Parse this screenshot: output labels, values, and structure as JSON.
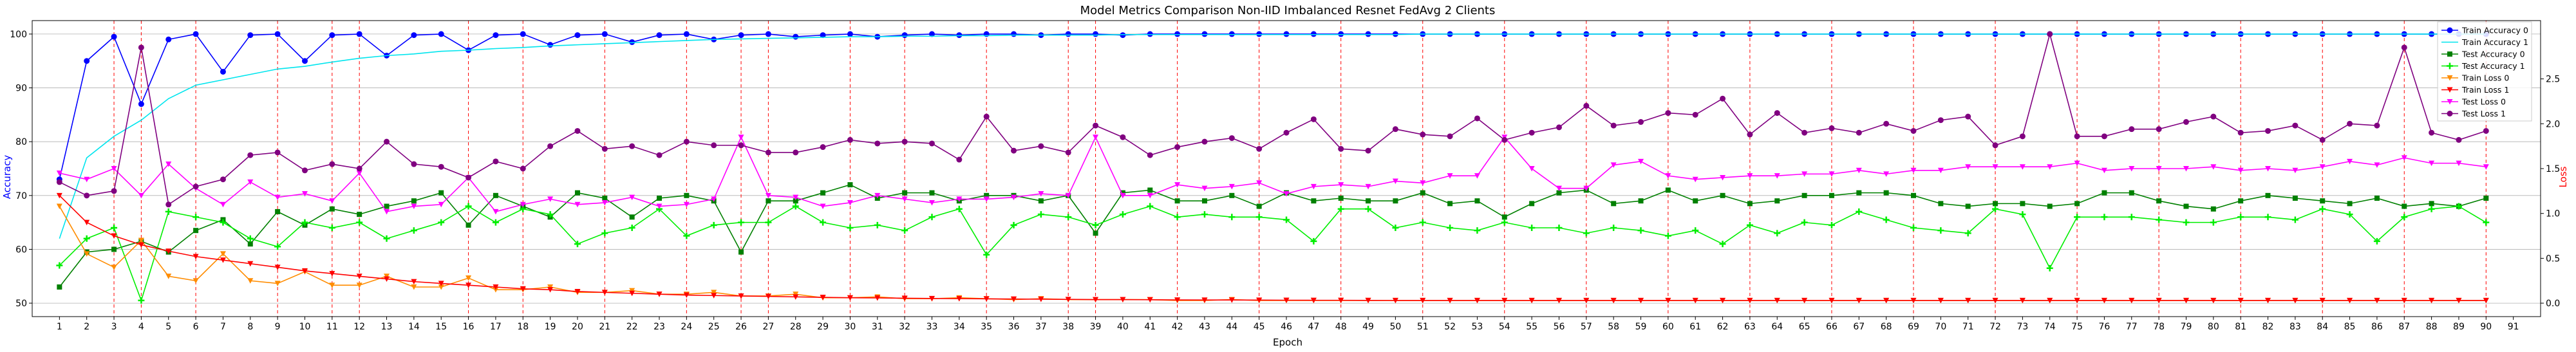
{
  "chart_data": {
    "type": "line",
    "title": "Model Metrics Comparison Non-IID Imbalanced Resnet FedAvg 2 Clients",
    "xlabel": "Epoch",
    "ylabel_left": "Accuracy",
    "ylabel_right": "Loss",
    "x": [
      1,
      2,
      3,
      4,
      5,
      6,
      7,
      8,
      9,
      10,
      11,
      12,
      13,
      14,
      15,
      16,
      17,
      18,
      19,
      20,
      21,
      22,
      23,
      24,
      25,
      26,
      27,
      28,
      29,
      30,
      31,
      32,
      33,
      34,
      35,
      36,
      37,
      38,
      39,
      40,
      41,
      42,
      43,
      44,
      45,
      46,
      47,
      48,
      49,
      50,
      51,
      52,
      53,
      54,
      55,
      56,
      57,
      58,
      59,
      60,
      61,
      62,
      63,
      64,
      65,
      66,
      67,
      68,
      69,
      70,
      71,
      72,
      73,
      74,
      75,
      76,
      77,
      78,
      79,
      80,
      81,
      82,
      83,
      84,
      85,
      86,
      87,
      88,
      89,
      90
    ],
    "x_ticks": [
      "1",
      "2",
      "3",
      "4",
      "5",
      "6",
      "7",
      "8",
      "9",
      "10",
      "11",
      "12",
      "13",
      "14",
      "15",
      "16",
      "17",
      "18",
      "19",
      "20",
      "21",
      "22",
      "23",
      "24",
      "25",
      "26",
      "27",
      "28",
      "29",
      "30",
      "31",
      "32",
      "33",
      "34",
      "35",
      "36",
      "37",
      "38",
      "39",
      "40",
      "41",
      "42",
      "43",
      "44",
      "45",
      "46",
      "47",
      "48",
      "49",
      "50",
      "51",
      "52",
      "53",
      "54",
      "55",
      "56",
      "57",
      "58",
      "59",
      "60",
      "61",
      "62",
      "63",
      "64",
      "65",
      "66",
      "67",
      "68",
      "69",
      "70",
      "71",
      "72",
      "73",
      "74",
      "75",
      "76",
      "77",
      "78",
      "79",
      "80",
      "81",
      "82",
      "83",
      "84",
      "85",
      "86",
      "87",
      "88",
      "89",
      "90",
      "91"
    ],
    "xlim": [
      0,
      92
    ],
    "ylim_left": [
      47.5,
      102.5
    ],
    "ylim_right": [
      -0.15,
      3.15
    ],
    "left_ticks": [
      "50",
      "60",
      "70",
      "80",
      "90",
      "100"
    ],
    "right_ticks": [
      "0.0",
      "0.5",
      "1.0",
      "1.5",
      "2.0",
      "2.5"
    ],
    "vlines": [
      3,
      4,
      6,
      9,
      11,
      12,
      16,
      18,
      21,
      24,
      26,
      27,
      30,
      32,
      35,
      38,
      39,
      42,
      45,
      48,
      51,
      54,
      57,
      60,
      63,
      66,
      69,
      72,
      75,
      78,
      81,
      84,
      87,
      90
    ],
    "grid": true,
    "legend_position": "top-right",
    "series": [
      {
        "name": "Train Accuracy 0",
        "axis": "left",
        "color": "#0000ff",
        "marker": "circle",
        "values": [
          73,
          95,
          99.5,
          87,
          99,
          100,
          93,
          99.8,
          100,
          95,
          99.8,
          100,
          96,
          99.8,
          100,
          97,
          99.8,
          100,
          98,
          99.8,
          100,
          98.5,
          99.8,
          100,
          99,
          99.8,
          100,
          99.5,
          99.8,
          100,
          99.5,
          99.8,
          100,
          99.8,
          100,
          100,
          99.8,
          100,
          100,
          99.8,
          100,
          100,
          100,
          100,
          100,
          100,
          100,
          100,
          100,
          100,
          100,
          100,
          100,
          100,
          100,
          100,
          100,
          100,
          100,
          100,
          100,
          100,
          100,
          100,
          100,
          100,
          100,
          100,
          100,
          100,
          100,
          100,
          100,
          100,
          100,
          100,
          100,
          100,
          100,
          100,
          100,
          100,
          100,
          100,
          100,
          100,
          100,
          100,
          100,
          100
        ]
      },
      {
        "name": "Train Accuracy 1",
        "axis": "left",
        "color": "#00e5ee",
        "marker": "none",
        "values": [
          62,
          77,
          81,
          84,
          88,
          90.5,
          91.5,
          92.5,
          93.5,
          94,
          94.8,
          95.5,
          96,
          96.3,
          96.8,
          97,
          97.3,
          97.5,
          97.8,
          98,
          98.2,
          98.4,
          98.6,
          98.8,
          99,
          99.1,
          99.2,
          99.3,
          99.4,
          99.5,
          99.5,
          99.6,
          99.6,
          99.7,
          99.7,
          99.8,
          99.8,
          99.8,
          99.8,
          99.9,
          99.9,
          99.9,
          99.9,
          99.9,
          99.9,
          99.9,
          99.9,
          99.9,
          99.9,
          99.9,
          100,
          100,
          100,
          100,
          100,
          100,
          100,
          100,
          100,
          100,
          100,
          100,
          100,
          100,
          100,
          100,
          100,
          100,
          100,
          100,
          100,
          100,
          100,
          100,
          100,
          100,
          100,
          100,
          100,
          100,
          100,
          100,
          100,
          100,
          100,
          100,
          100,
          100,
          100,
          100
        ]
      },
      {
        "name": "Test Accuracy 0",
        "axis": "left",
        "color": "#008000",
        "marker": "square",
        "values": [
          53,
          59.5,
          60,
          61.5,
          59.5,
          63.5,
          65.5,
          61,
          67,
          64.5,
          67.5,
          66.5,
          68,
          69,
          70.5,
          64.5,
          70,
          68,
          66,
          70.5,
          69.5,
          66,
          69.5,
          70,
          69,
          59.5,
          69,
          69,
          70.5,
          72,
          69.5,
          70.5,
          70.5,
          69,
          70,
          70,
          69,
          70,
          63,
          70.5,
          71,
          69,
          69,
          70,
          68,
          70.5,
          69,
          69.5,
          69,
          69,
          70.5,
          68.5,
          69,
          66,
          68.5,
          70.5,
          71,
          68.5,
          69,
          71,
          69,
          70,
          68.5,
          69,
          70,
          70,
          70.5,
          70.5,
          70,
          68.5,
          68,
          68.5,
          68.5,
          68,
          68.5,
          70.5,
          70.5,
          69,
          68,
          67.5,
          69,
          70,
          69.5,
          69,
          68.5,
          69.5,
          68,
          68.5,
          68,
          69.5
        ]
      },
      {
        "name": "Test Accuracy 1",
        "axis": "left",
        "color": "#00ee00",
        "marker": "plus",
        "values": [
          57,
          62,
          64,
          50.5,
          67,
          66,
          65,
          62,
          60.5,
          65,
          64,
          65,
          62,
          63.5,
          65,
          68,
          65,
          67.5,
          66.5,
          61,
          63,
          64,
          67.5,
          62.5,
          64.5,
          65,
          65,
          68,
          65,
          64,
          64.5,
          63.5,
          66,
          67.5,
          59,
          64.5,
          66.5,
          66,
          64.5,
          66.5,
          68,
          66,
          66.5,
          66,
          66,
          65.5,
          61.5,
          67.5,
          67.5,
          64,
          65,
          64,
          63.5,
          65,
          64,
          64,
          63,
          64,
          63.5,
          62.5,
          63.5,
          61,
          64.5,
          63,
          65,
          64.5,
          67,
          65.5,
          64,
          63.5,
          63,
          67.5,
          66.5,
          56.5,
          66,
          66,
          66,
          65.5,
          65,
          65,
          66,
          66,
          65.5,
          67.5,
          66.5,
          61.5,
          66,
          67.5,
          68,
          65
        ]
      },
      {
        "name": "Train Loss 0",
        "axis": "right",
        "color": "#ff8c00",
        "marker": "triangle-down",
        "values": [
          1.08,
          0.55,
          0.4,
          0.7,
          0.3,
          0.25,
          0.55,
          0.25,
          0.22,
          0.35,
          0.2,
          0.2,
          0.3,
          0.18,
          0.18,
          0.28,
          0.15,
          0.15,
          0.18,
          0.12,
          0.12,
          0.14,
          0.1,
          0.1,
          0.12,
          0.08,
          0.08,
          0.1,
          0.06,
          0.06,
          0.07,
          0.05,
          0.05,
          0.06,
          0.05,
          0.04,
          0.05,
          0.04,
          0.04,
          0.04,
          0.04,
          0.03,
          0.03,
          0.04,
          0.03,
          0.03,
          0.03,
          0.03,
          0.03,
          0.03,
          0.03,
          0.03,
          0.03,
          0.03,
          0.03,
          0.03,
          0.03,
          0.03,
          0.03,
          0.03,
          0.03,
          0.03,
          0.03,
          0.03,
          0.03,
          0.03,
          0.03,
          0.03,
          0.03,
          0.03,
          0.03,
          0.03,
          0.03,
          0.03,
          0.03,
          0.03,
          0.03,
          0.03,
          0.03,
          0.03,
          0.03,
          0.03,
          0.03,
          0.03,
          0.03,
          0.03,
          0.03,
          0.03,
          0.03,
          0.03
        ]
      },
      {
        "name": "Train Loss 1",
        "axis": "right",
        "color": "#ff0000",
        "marker": "triangle-down",
        "values": [
          1.2,
          0.9,
          0.75,
          0.65,
          0.58,
          0.52,
          0.48,
          0.44,
          0.4,
          0.36,
          0.33,
          0.3,
          0.27,
          0.24,
          0.22,
          0.2,
          0.18,
          0.16,
          0.15,
          0.13,
          0.12,
          0.11,
          0.1,
          0.09,
          0.085,
          0.08,
          0.075,
          0.07,
          0.065,
          0.06,
          0.058,
          0.055,
          0.052,
          0.05,
          0.048,
          0.046,
          0.044,
          0.042,
          0.04,
          0.04,
          0.038,
          0.036,
          0.035,
          0.035,
          0.034,
          0.033,
          0.032,
          0.032,
          0.031,
          0.03,
          0.03,
          0.03,
          0.03,
          0.03,
          0.03,
          0.03,
          0.03,
          0.03,
          0.03,
          0.03,
          0.03,
          0.03,
          0.03,
          0.03,
          0.03,
          0.03,
          0.03,
          0.03,
          0.03,
          0.03,
          0.03,
          0.03,
          0.03,
          0.03,
          0.03,
          0.03,
          0.03,
          0.03,
          0.03,
          0.03,
          0.03,
          0.03,
          0.03,
          0.03,
          0.03,
          0.03,
          0.03,
          0.03,
          0.03,
          0.03
        ]
      },
      {
        "name": "Test Loss 0",
        "axis": "right",
        "color": "#ff00ff",
        "marker": "triangle-down",
        "values": [
          1.45,
          1.38,
          1.5,
          1.2,
          1.55,
          1.28,
          1.1,
          1.35,
          1.18,
          1.22,
          1.14,
          1.45,
          1.02,
          1.08,
          1.1,
          1.4,
          1.02,
          1.1,
          1.16,
          1.1,
          1.12,
          1.18,
          1.08,
          1.1,
          1.16,
          1.85,
          1.2,
          1.18,
          1.08,
          1.12,
          1.2,
          1.16,
          1.12,
          1.16,
          1.16,
          1.18,
          1.22,
          1.2,
          1.85,
          1.2,
          1.2,
          1.32,
          1.28,
          1.3,
          1.34,
          1.22,
          1.3,
          1.32,
          1.3,
          1.36,
          1.34,
          1.42,
          1.42,
          1.85,
          1.5,
          1.28,
          1.28,
          1.54,
          1.58,
          1.42,
          1.38,
          1.4,
          1.42,
          1.42,
          1.44,
          1.44,
          1.48,
          1.44,
          1.48,
          1.48,
          1.52,
          1.52,
          1.52,
          1.52,
          1.56,
          1.48,
          1.5,
          1.5,
          1.5,
          1.52,
          1.48,
          1.5,
          1.48,
          1.52,
          1.58,
          1.54,
          1.62,
          1.56,
          1.56,
          1.52
        ]
      },
      {
        "name": "Test Loss 1",
        "axis": "right",
        "color": "#800080",
        "marker": "circle",
        "values": [
          1.35,
          1.2,
          1.25,
          2.85,
          1.1,
          1.3,
          1.38,
          1.65,
          1.68,
          1.48,
          1.55,
          1.5,
          1.8,
          1.55,
          1.52,
          1.4,
          1.58,
          1.5,
          1.75,
          1.92,
          1.72,
          1.75,
          1.65,
          1.8,
          1.76,
          1.76,
          1.68,
          1.68,
          1.74,
          1.82,
          1.78,
          1.8,
          1.78,
          1.6,
          2.08,
          1.7,
          1.75,
          1.68,
          1.98,
          1.85,
          1.65,
          1.74,
          1.8,
          1.84,
          1.72,
          1.9,
          2.05,
          1.72,
          1.7,
          1.94,
          1.88,
          1.86,
          2.06,
          1.82,
          1.9,
          1.96,
          2.2,
          1.98,
          2.02,
          2.12,
          2.1,
          2.28,
          1.88,
          2.12,
          1.9,
          1.95,
          1.9,
          2.0,
          1.92,
          2.04,
          2.08,
          1.76,
          1.86,
          3.0,
          1.86,
          1.86,
          1.94,
          1.94,
          2.02,
          2.08,
          1.9,
          1.92,
          1.98,
          1.82,
          2.0,
          1.98,
          2.85,
          1.9,
          1.82,
          1.92
        ]
      }
    ]
  }
}
